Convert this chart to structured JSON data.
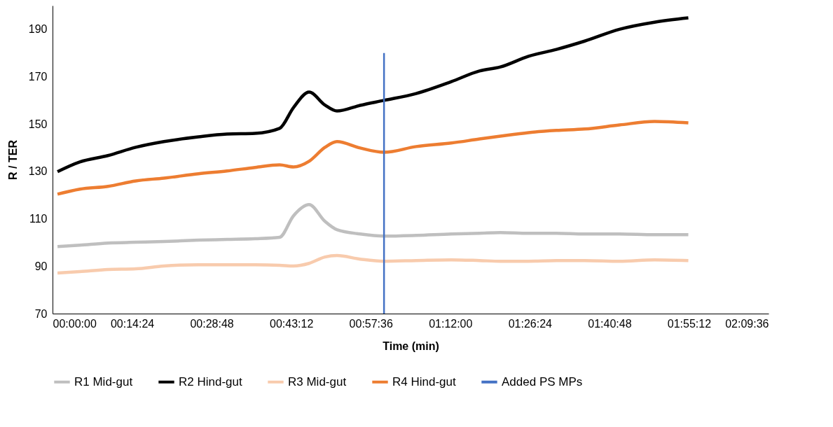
{
  "chart_data": {
    "type": "line",
    "xlabel": "Time (min)",
    "ylabel": "R / TER",
    "x": [
      0.015,
      0.082,
      0.167,
      0.251,
      0.336,
      0.44,
      0.526,
      0.611,
      0.685,
      0.727,
      0.774,
      0.822,
      0.858,
      0.928,
      1.0,
      1.097,
      1.203,
      1.288,
      1.351,
      1.436,
      1.52,
      1.605,
      1.71,
      1.816,
      1.918
    ],
    "series": [
      {
        "name": "R1 Mid-gut",
        "color": "#bfbfbf",
        "values": [
          98.3,
          98.9,
          99.8,
          100.1,
          100.4,
          101,
          101.3,
          101.6,
          102.2,
          111.3,
          116,
          108.9,
          105.4,
          103.6,
          102.7,
          103,
          103.6,
          103.9,
          104.2,
          103.9,
          103.9,
          103.6,
          103.6,
          103.3,
          103.3
        ]
      },
      {
        "name": "R2 Hind-gut",
        "color": "#000000",
        "values": [
          129.9,
          134,
          136.7,
          140.2,
          142.6,
          144.6,
          145.8,
          146.1,
          148.2,
          157,
          163.5,
          158,
          155.5,
          157.9,
          160,
          162.9,
          167.9,
          172.4,
          174.1,
          178.6,
          181.5,
          185,
          190,
          193,
          194.8
        ]
      },
      {
        "name": "R3 Mid-gut",
        "color": "#f8cbad",
        "values": [
          87.1,
          87.7,
          88.6,
          88.9,
          90.1,
          90.6,
          90.6,
          90.6,
          90.4,
          90.1,
          91.2,
          93.9,
          94.5,
          93,
          92.1,
          92.4,
          92.7,
          92.4,
          92.1,
          92.1,
          92.4,
          92.4,
          92.1,
          92.7,
          92.4
        ]
      },
      {
        "name": "R4 Hind-gut",
        "color": "#ed7d31",
        "values": [
          120.4,
          122.5,
          123.7,
          126,
          127.2,
          129,
          130.2,
          131.7,
          132.8,
          131.9,
          134.3,
          140.2,
          142.6,
          139.9,
          138.1,
          140.5,
          142,
          143.7,
          144.9,
          146.4,
          147.3,
          147.9,
          149.6,
          151.1,
          150.5
        ]
      },
      {
        "name": "Added PS MPs",
        "color": "#4472c4",
        "x": [
          1.0,
          1.0
        ],
        "values": [
          70,
          180
        ]
      }
    ],
    "xlim": [
      0,
      2.16
    ],
    "xticks": [
      {
        "value": 0,
        "label": "00:00:00"
      },
      {
        "value": 0.24,
        "label": "00:14:24"
      },
      {
        "value": 0.48,
        "label": "00:28:48"
      },
      {
        "value": 0.72,
        "label": "00:43:12"
      },
      {
        "value": 0.96,
        "label": "00:57:36"
      },
      {
        "value": 1.2,
        "label": "01:12:00"
      },
      {
        "value": 1.44,
        "label": "01:26:24"
      },
      {
        "value": 1.68,
        "label": "01:40:48"
      },
      {
        "value": 1.92,
        "label": "01:55:12"
      },
      {
        "value": 2.16,
        "label": "02:09:36"
      }
    ],
    "ylim": [
      70,
      200
    ],
    "yticks": [
      70,
      90,
      110,
      130,
      150,
      170,
      190
    ],
    "grid": false,
    "legend": "bottom"
  }
}
